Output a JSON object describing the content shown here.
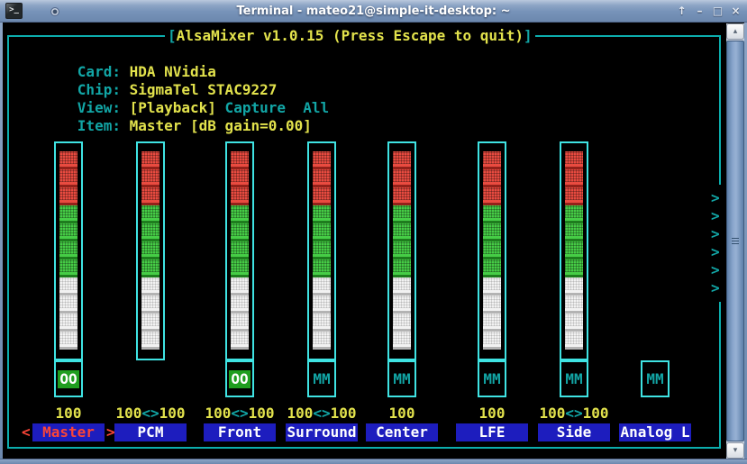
{
  "window": {
    "title": "Terminal - mateo21@simple-it-desktop: ~",
    "buttons": {
      "shade": "↑",
      "minimize": "–",
      "maximize": "□",
      "close": "×"
    }
  },
  "icons": {
    "terminal_app": ">_",
    "scroll_up": "▴",
    "scroll_down": "▾"
  },
  "mixer": {
    "title_open": "[",
    "title_text": "AlsaMixer v1.0.15 (Press Escape to quit)",
    "title_close": "]",
    "info": [
      {
        "label": "Card: ",
        "value": "HDA NVidia",
        "extra": ""
      },
      {
        "label": "Chip: ",
        "value": "SigmaTel STAC9227",
        "extra": ""
      },
      {
        "label": "View: ",
        "value": "[Playback]",
        "extra": " Capture  All"
      },
      {
        "label": "Item: ",
        "value": "Master [dB gain=0.00]",
        "extra": ""
      }
    ]
  },
  "selected_markers": {
    "left": "<",
    "right": ">"
  },
  "scroll_indicators": [
    ">",
    ">",
    ">",
    ">",
    ">",
    ">"
  ],
  "channels": [
    {
      "name": "Master",
      "volume_left": "100",
      "volume_sep": "",
      "volume_right": "",
      "mute": "OO",
      "has_bar": true,
      "fill_percent": 100,
      "selected": true
    },
    {
      "name": "PCM",
      "volume_left": "100",
      "volume_sep": "<>",
      "volume_right": "100",
      "mute": null,
      "has_bar": true,
      "fill_percent": 100,
      "selected": false
    },
    {
      "name": "Front",
      "volume_left": "100",
      "volume_sep": "<>",
      "volume_right": "100",
      "mute": "OO",
      "has_bar": true,
      "fill_percent": 100,
      "selected": false
    },
    {
      "name": "Surround",
      "volume_left": "100",
      "volume_sep": "<>",
      "volume_right": "100",
      "mute": "MM",
      "has_bar": true,
      "fill_percent": 100,
      "selected": false
    },
    {
      "name": "Center",
      "volume_left": "100",
      "volume_sep": "",
      "volume_right": "",
      "mute": "MM",
      "has_bar": true,
      "fill_percent": 100,
      "selected": false
    },
    {
      "name": "LFE",
      "volume_left": "100",
      "volume_sep": "",
      "volume_right": "",
      "mute": "MM",
      "has_bar": true,
      "fill_percent": 100,
      "selected": false
    },
    {
      "name": "Side",
      "volume_left": "100",
      "volume_sep": "<>",
      "volume_right": "100",
      "mute": "MM",
      "has_bar": true,
      "fill_percent": 100,
      "selected": false
    },
    {
      "name": "Analog L",
      "volume_left": "",
      "volume_sep": "",
      "volume_right": "",
      "mute": "MM",
      "has_bar": false,
      "fill_percent": 0,
      "selected": false
    }
  ],
  "colors": {
    "teal": "#12a6a6",
    "border_teal": "#0cadad",
    "cyan": "#3fe3e3",
    "yellow": "#e2e24c",
    "label_blue": "#1d1dbe",
    "selected_red": "#fb4538",
    "mute_green": "#1f9e1f",
    "bar_red": "#e94b40",
    "bar_red_dark": "#93211a",
    "bar_green": "#46cd46",
    "bar_green_dark": "#1e7d1e",
    "bar_white": "#f2f2f2",
    "bar_white_dark": "#b3b3b3"
  }
}
